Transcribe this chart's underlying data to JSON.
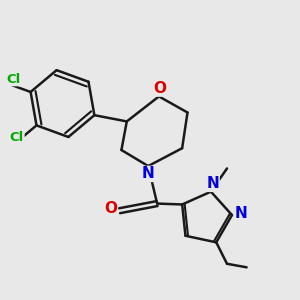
{
  "bg_color": "#e8e8e8",
  "bond_color": "#1a1a1a",
  "bond_width": 1.8,
  "atom_colors": {
    "C": "#1a1a1a",
    "N": "#0000dd",
    "O": "#dd0000",
    "Cl": "#00aa00"
  },
  "font_size": 9
}
